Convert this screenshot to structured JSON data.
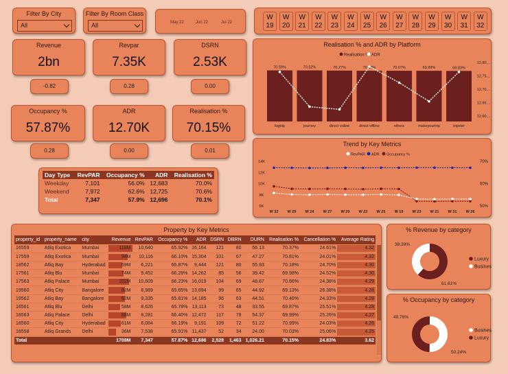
{
  "filters": {
    "city": {
      "label": "Filter By City",
      "value": "All"
    },
    "room_class": {
      "label": "Filter By Room Class",
      "value": "All"
    },
    "months": [
      "May 22",
      "Jun 22",
      "Jul 22"
    ],
    "weeks": [
      {
        "w": "W",
        "n": "19"
      },
      {
        "w": "W",
        "n": "20"
      },
      {
        "w": "W",
        "n": "21"
      },
      {
        "w": "W",
        "n": "22"
      },
      {
        "w": "W",
        "n": "23"
      },
      {
        "w": "W",
        "n": "24"
      },
      {
        "w": "W",
        "n": "25"
      },
      {
        "w": "W",
        "n": "26"
      },
      {
        "w": "W",
        "n": "27"
      },
      {
        "w": "W",
        "n": "28"
      },
      {
        "w": "W",
        "n": "29"
      },
      {
        "w": "W",
        "n": "30"
      },
      {
        "w": "W",
        "n": "31"
      },
      {
        "w": "W",
        "n": "32"
      }
    ]
  },
  "kpis": {
    "revenue": {
      "label": "Revenue",
      "value": "2bn",
      "change": "-0.82"
    },
    "revpar": {
      "label": "Revpar",
      "value": "7.35K",
      "change": "0.28"
    },
    "dsrn": {
      "label": "DSRN",
      "value": "2.53K",
      "change": "0.00"
    },
    "occupancy": {
      "label": "Occupancy %",
      "value": "57.87%",
      "change": "0.28"
    },
    "adr": {
      "label": "ADR",
      "value": "12.70K",
      "change": "0.00"
    },
    "realisation": {
      "label": "Realisation %",
      "value": "70.15%",
      "change": "0.01"
    }
  },
  "day_type_table": {
    "headers": [
      "Day Type",
      "RevPAR",
      "Occupancy %",
      "ADR",
      "Realisation %"
    ],
    "rows": [
      [
        "Weekday",
        "7,101",
        "56.0%",
        "12,683",
        "70.0%"
      ],
      [
        "Weekend",
        "7,972",
        "62.6%",
        "12,725",
        "70.6%"
      ],
      [
        "Total",
        "7,347",
        "57.9%",
        "12,696",
        "70.1%"
      ]
    ]
  },
  "platform_chart": {
    "title": "Realisation % and ADR by Platform",
    "legend": [
      "Realisation %",
      "ADR"
    ],
    "colors": {
      "bar": "#6b1f1f",
      "line": "#ffffff"
    },
    "chart_data": {
      "type": "bar",
      "categories": [
        "logtrip",
        "journey",
        "direct online",
        "direct offline",
        "others",
        "makeyourtrip",
        "tripster"
      ],
      "series": [
        {
          "name": "Realisation %",
          "values": [
            70.59,
            70.52,
            70.27,
            70.09,
            70.07,
            69.99,
            69.83
          ]
        },
        {
          "name": "ADR",
          "values": [
            12780,
            12650,
            12640,
            12800,
            12740,
            12670,
            12780
          ]
        }
      ],
      "data_labels": [
        "70.59%",
        "70.52%",
        "70.27%",
        "70.09%",
        "70.07%",
        "69.99%",
        "69.83%"
      ],
      "y2_ticks": [
        "12,80...",
        "12,75...",
        "12,70...",
        "12,65...",
        "12,60..."
      ],
      "y2lim": [
        12600,
        12800
      ]
    }
  },
  "trend_chart": {
    "title": "Trend by Key Metrics",
    "legend": [
      "RevPAR",
      "ADR",
      "Occupancy %"
    ],
    "colors": {
      "revpar": "#ffffff",
      "adr": "#1a2aa8",
      "occ": "#7a1a1a"
    },
    "chart_data": {
      "type": "line",
      "categories": [
        "W 32",
        "W 29",
        "W 24",
        "W 27",
        "W 20",
        "W 22",
        "W 25",
        "W 19",
        "W 23",
        "W 21",
        "W 31",
        "W 26"
      ],
      "series": [
        {
          "name": "ADR",
          "values": [
            12700,
            12680,
            12650,
            12660,
            12700,
            12680,
            12700,
            12690,
            12720,
            12710,
            12700,
            12690
          ]
        },
        {
          "name": "Occupancy %",
          "values": [
            58.5,
            57.2,
            57.1,
            57.2,
            57.1,
            57.0,
            57.2,
            57.1,
            50.5,
            50.4,
            50.5,
            50.5
          ]
        },
        {
          "name": "RevPAR",
          "values": [
            7600,
            7300,
            7250,
            7300,
            7250,
            7250,
            7300,
            7200,
            6400,
            6350,
            6400,
            6380
          ]
        }
      ],
      "y_ticks": [
        "14K",
        "12K",
        "10K",
        "8K",
        "6K"
      ],
      "ylim": [
        5000,
        14000
      ],
      "y2_ticks": [
        "70%",
        "60%",
        "50%"
      ],
      "y2lim": [
        48,
        72
      ]
    }
  },
  "property_table": {
    "title": "Property by Key Metrics",
    "headers": [
      "property_id",
      "property_name",
      "city",
      "Revenue",
      "RevPAR",
      "Occupancy %",
      "ADR",
      "DSRN",
      "DBRN",
      "DURN",
      "Realisation %",
      "Cancellation %",
      "Average Rating"
    ],
    "rows": [
      [
        "16559",
        "Atliq Exotica",
        "Mumbai",
        "118M",
        "10,640",
        "65.92%",
        "16,164",
        "121",
        "80",
        "56.13",
        "70.37%",
        "24.61%",
        "4.32"
      ],
      [
        "17559",
        "Atliq Exotica",
        "Mumbai",
        "94M",
        "10,116",
        "66.10%",
        "15,304",
        "101",
        "67",
        "47.27",
        "70.81%",
        "24.01%",
        "4.32"
      ],
      [
        "18562",
        "Atliq Bay",
        "Hyderabad",
        "69M",
        "6,221",
        "65.87%",
        "9,444",
        "121",
        "80",
        "55.93",
        "70.18%",
        "24.70%",
        "4.30"
      ],
      [
        "17561",
        "Atliq Blu",
        "Mumbai",
        "74M",
        "9,452",
        "66.28%",
        "14,262",
        "85",
        "56",
        "39.42",
        "69.98%",
        "24.52%",
        "4.30"
      ],
      [
        "17563",
        "Atliq Palace",
        "Mumbai",
        "102M",
        "10,609",
        "66.23%",
        "16,019",
        "104",
        "69",
        "48.67",
        "70.66%",
        "24.38%",
        "4.29"
      ],
      [
        "19560",
        "Atliq City",
        "Bangalore",
        "82M",
        "8,989",
        "65.65%",
        "13,694",
        "99",
        "65",
        "44.92",
        "69.13%",
        "26.38%",
        "4.28"
      ],
      [
        "19562",
        "Atliq Bay",
        "Bangalore",
        "82M",
        "9,335",
        "65.81%",
        "14,185",
        "96",
        "63",
        "44.51",
        "70.46%",
        "24.33%",
        "4.28"
      ],
      [
        "16561",
        "Atliq Blu",
        "Delhi",
        "58M",
        "8,626",
        "65.78%",
        "13,113",
        "73",
        "48",
        "33.55",
        "69.87%",
        "25.51%",
        "4.28"
      ],
      [
        "16563",
        "Atliq Palace",
        "Delhi",
        "88M",
        "8,281",
        "66.40%",
        "12,472",
        "117",
        "78",
        "54.37",
        "69.99%",
        "25.26%",
        "4.27"
      ],
      [
        "18560",
        "Atliq City",
        "Hyderabad",
        "61M",
        "6,084",
        "66.19%",
        "9,191",
        "109",
        "72",
        "51.22",
        "70.99%",
        "24.03%",
        "4.26"
      ],
      [
        "16558",
        "Atliq Grands",
        "Delhi",
        "36M",
        "7,538",
        "65.91%",
        "11,437",
        "52",
        "34",
        "24.00",
        "70.03%",
        "25.06%",
        "4.25"
      ]
    ],
    "revenue_values": [
      118,
      94,
      69,
      74,
      102,
      82,
      82,
      58,
      88,
      61,
      36
    ],
    "rating_values": [
      4.32,
      4.32,
      4.3,
      4.3,
      4.29,
      4.28,
      4.28,
      4.28,
      4.27,
      4.26,
      4.25
    ],
    "total": [
      "Total",
      "",
      "",
      "1709M",
      "7,347",
      "57.87%",
      "12,696",
      "2,528",
      "1,463",
      "1,026.21",
      "70.15%",
      "24.83%",
      "3.62"
    ]
  },
  "revenue_donut": {
    "title": "% Revenue by category",
    "legend": [
      "Luxury",
      "Business"
    ],
    "colors": {
      "luxury": "#6b1f1f",
      "business": "#ffffff"
    },
    "chart_data": {
      "type": "pie",
      "categories": [
        "Luxury",
        "Business"
      ],
      "values": [
        61.61,
        38.39
      ]
    },
    "labels": [
      "38.39%",
      "61.61%"
    ]
  },
  "occupancy_donut": {
    "title": "% Occupancy by category",
    "legend": [
      "Business",
      "Luxury"
    ],
    "colors": {
      "luxury": "#6b1f1f",
      "business": "#ffffff"
    },
    "chart_data": {
      "type": "pie",
      "categories": [
        "Business",
        "Luxury"
      ],
      "values": [
        50.24,
        49.76
      ]
    },
    "labels": [
      "49.76%",
      "50.24%"
    ]
  }
}
